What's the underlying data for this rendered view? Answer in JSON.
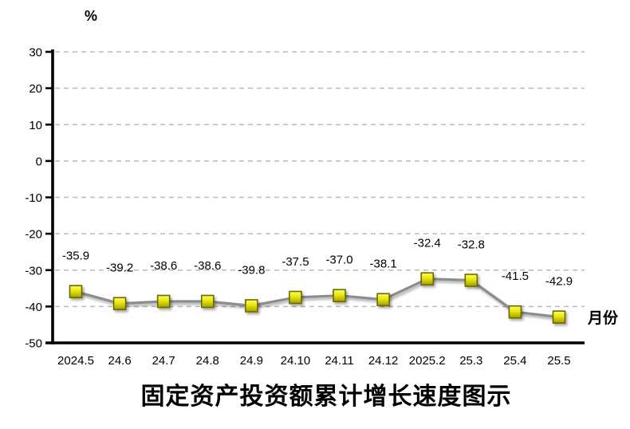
{
  "chart_data": {
    "type": "line",
    "title": "固定资产投资额累计增长速度图示",
    "y_axis_title": "%",
    "x_axis_title": "月份",
    "categories": [
      "2024.5",
      "24.6",
      "24.7",
      "24.8",
      "24.9",
      "24.10",
      "24.11",
      "24.12",
      "2025.2",
      "25.3",
      "25.4",
      "25.5"
    ],
    "values": [
      -35.9,
      -39.2,
      -38.6,
      -38.6,
      -39.8,
      -37.5,
      -37.0,
      -38.1,
      -32.4,
      -32.8,
      -41.5,
      -42.9
    ],
    "data_labels": [
      "-35.9",
      "-39.2",
      "-38.6",
      "-38.6",
      "-39.8",
      "-37.5",
      "-37.0",
      "-38.1",
      "-32.4",
      "-32.8",
      "-41.5",
      "-42.9"
    ],
    "y_ticks": [
      30,
      20,
      10,
      0,
      -10,
      -20,
      -30,
      -40,
      -50
    ],
    "ylim": [
      -50,
      30
    ],
    "grid": true,
    "legend_position": "none",
    "marker_shape": "square",
    "colors": {
      "marker_fill_top": "#ffff55",
      "marker_fill_mid": "#e8e413",
      "marker_fill_bottom": "#a3a000",
      "marker_border": "#6b6b00",
      "line": "#8c8c8c",
      "gridline": "#b9b9b9",
      "axis": "#000000",
      "text": "#000000",
      "background": "#ffffff"
    }
  }
}
